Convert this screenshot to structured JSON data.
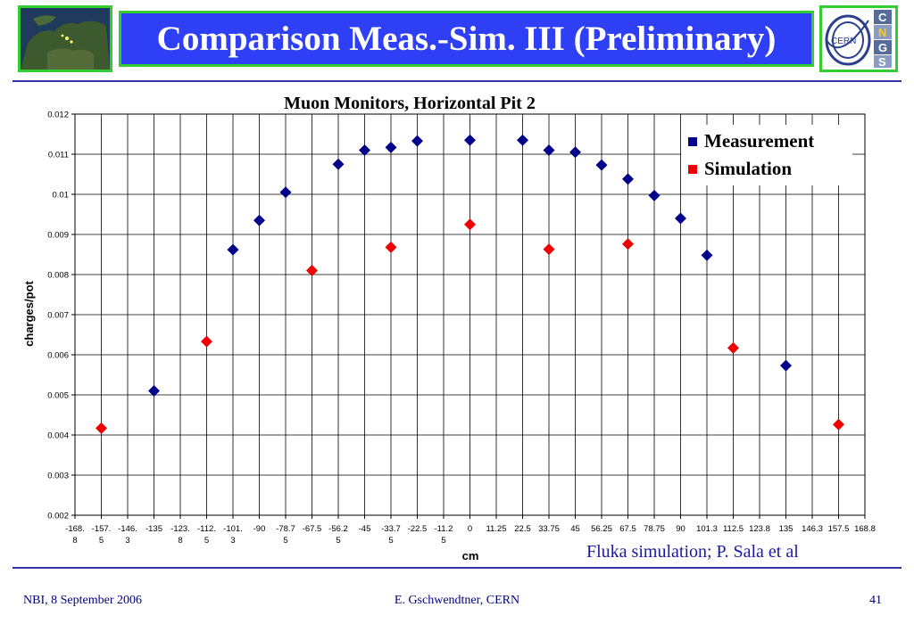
{
  "header": {
    "title": "Comparison Meas.-Sim. III (Preliminary)",
    "left_logo": "europe-map-icon",
    "right_logo": {
      "icon": "cngs-cern-logo-icon",
      "text": "CERN",
      "letters": [
        "C",
        "N",
        "G",
        "S"
      ]
    }
  },
  "colors": {
    "title_bg": "#2f3ff5",
    "frame": "#33cc33",
    "measurement": "#00008b",
    "simulation": "#ee0000",
    "rule": "#3333aa"
  },
  "chart_data": {
    "type": "scatter",
    "title": "Muon Monitors, Horizontal Pit 2",
    "xlabel": "cm",
    "ylabel": "charges/pot",
    "x_ticks": [
      [
        "-168.",
        "8"
      ],
      [
        "-157.",
        "5"
      ],
      [
        "-146.",
        "3"
      ],
      [
        "-135"
      ],
      [
        "-123.",
        "8"
      ],
      [
        "-112.",
        "5"
      ],
      [
        "-101.",
        "3"
      ],
      [
        "-90"
      ],
      [
        "-78.7",
        "5"
      ],
      [
        "-67.5"
      ],
      [
        "-56.2",
        "5"
      ],
      [
        "-45"
      ],
      [
        "-33.7",
        "5"
      ],
      [
        "-22.5"
      ],
      [
        "-11.2",
        "5"
      ],
      [
        "0"
      ],
      [
        "11.25"
      ],
      [
        "22.5"
      ],
      [
        "33.75"
      ],
      [
        "45"
      ],
      [
        "56.25"
      ],
      [
        "67.5"
      ],
      [
        "78.75"
      ],
      [
        "90"
      ],
      [
        "101.3"
      ],
      [
        "112.5"
      ],
      [
        "123.8"
      ],
      [
        "135"
      ],
      [
        "146.3"
      ],
      [
        "157.5"
      ],
      [
        "168.8"
      ]
    ],
    "y_ticks": [
      "0.002",
      "0.003",
      "0.004",
      "0.005",
      "0.006",
      "0.007",
      "0.008",
      "0.009",
      "0.01",
      "0.011",
      "0.012"
    ],
    "ylim": [
      0.002,
      0.012
    ],
    "xlim": [
      -168.75,
      168.75
    ],
    "grid": "vertical and horizontal",
    "legend_position": "top-right",
    "series": [
      {
        "name": "Measurement",
        "color": "#00008b",
        "x": [
          -135,
          -101.25,
          -90,
          -78.75,
          -56.25,
          -45,
          -33.75,
          -22.5,
          0,
          22.5,
          33.75,
          45,
          56.25,
          67.5,
          78.75,
          90,
          101.25,
          135
        ],
        "y": [
          0.0051,
          0.00862,
          0.00935,
          0.01005,
          0.01075,
          0.0111,
          0.01117,
          0.01133,
          0.01135,
          0.01135,
          0.0111,
          0.01105,
          0.01073,
          0.01038,
          0.00997,
          0.0094,
          0.00848,
          0.00573
        ]
      },
      {
        "name": "Simulation",
        "color": "#ee0000",
        "x": [
          -157.5,
          -112.5,
          -67.5,
          -33.75,
          0,
          33.75,
          67.5,
          112.5,
          157.5
        ],
        "y": [
          0.00417,
          0.00633,
          0.0081,
          0.00868,
          0.00925,
          0.00863,
          0.00876,
          0.00617,
          0.00426
        ]
      }
    ]
  },
  "credit": "Fluka simulation; P. Sala et al",
  "footer": {
    "left": "NBI, 8 September 2006",
    "center": "E. Gschwendtner, CERN",
    "right": "41"
  }
}
